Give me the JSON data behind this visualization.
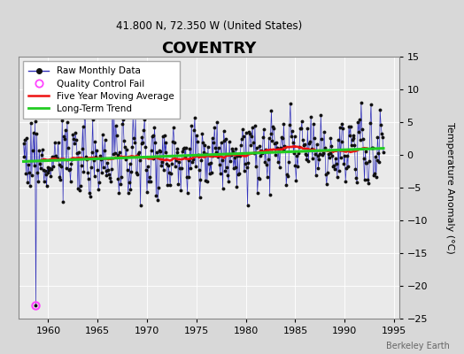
{
  "title": "COVENTRY",
  "subtitle": "41.800 N, 72.350 W (United States)",
  "ylabel": "Temperature Anomaly (°C)",
  "watermark": "Berkeley Earth",
  "xlim": [
    1957.0,
    1995.5
  ],
  "ylim": [
    -25,
    15
  ],
  "yticks": [
    -25,
    -20,
    -15,
    -10,
    -5,
    0,
    5,
    10,
    15
  ],
  "xticks": [
    1960,
    1965,
    1970,
    1975,
    1980,
    1985,
    1990,
    1995
  ],
  "bg_color": "#d8d8d8",
  "plot_bg_color": "#eaeaea",
  "raw_line_color": "#3333bb",
  "raw_marker_color": "#111111",
  "qc_fail_color": "#ff44ff",
  "moving_avg_color": "#ee1111",
  "trend_color": "#22cc22",
  "seed": 12,
  "start_year": 1957.5,
  "n_months": 438,
  "qc_fail_idx": 15,
  "qc_fail_value": -23.0,
  "noise_scale": 2.5,
  "seasonal_amp": 2.2,
  "trend_slope": 0.003
}
